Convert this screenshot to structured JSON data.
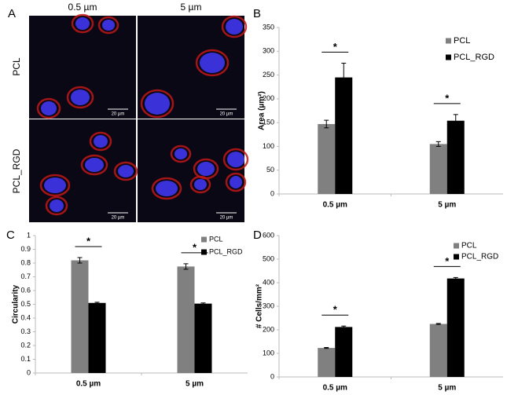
{
  "panel_a": {
    "label": "A",
    "columns": [
      "0.5 µm",
      "5 µm"
    ],
    "rows": [
      "PCL",
      "PCL_RGD"
    ],
    "scale_bars": [
      "20 µm",
      "20 µm",
      "20 µm",
      "20 µm"
    ]
  },
  "chart_data": [
    {
      "type": "bar",
      "label": "B",
      "ylabel": "Area (µm²)",
      "categories": [
        "0.5 µm",
        "5 µm"
      ],
      "series": [
        {
          "name": "PCL",
          "color": "#808080",
          "values": [
            147,
            105
          ],
          "errors": [
            8,
            5
          ]
        },
        {
          "name": "PCL_RGD",
          "color": "#000000",
          "values": [
            245,
            154
          ],
          "errors": [
            30,
            13
          ]
        }
      ],
      "significance": [
        "*",
        "*"
      ],
      "ylim": [
        0,
        350
      ],
      "yticks": [
        0,
        50,
        100,
        150,
        200,
        250,
        300,
        350
      ]
    },
    {
      "type": "bar",
      "label": "C",
      "ylabel": "Circularity",
      "categories": [
        "0.5 µm",
        "5 µm"
      ],
      "series": [
        {
          "name": "PCL",
          "color": "#808080",
          "values": [
            0.82,
            0.775
          ],
          "errors": [
            0.02,
            0.02
          ]
        },
        {
          "name": "PCL_RGD",
          "color": "#000000",
          "values": [
            0.51,
            0.505
          ],
          "errors": [
            0.005,
            0.005
          ]
        }
      ],
      "significance": [
        "*",
        "*"
      ],
      "ylim": [
        0,
        1
      ],
      "yticks": [
        0,
        0.1,
        0.2,
        0.3,
        0.4,
        0.5,
        0.6,
        0.7,
        0.8,
        0.9,
        1
      ]
    },
    {
      "type": "bar",
      "label": "D",
      "ylabel": "# Cells/mm²",
      "categories": [
        "0.5 µm",
        "5 µm"
      ],
      "series": [
        {
          "name": "PCL",
          "color": "#808080",
          "values": [
            123,
            225
          ],
          "errors": [
            2,
            2
          ]
        },
        {
          "name": "PCL_RGD",
          "color": "#000000",
          "values": [
            212,
            418
          ],
          "errors": [
            4,
            4
          ]
        }
      ],
      "significance": [
        "*",
        "*"
      ],
      "ylim": [
        0,
        600
      ],
      "yticks": [
        0,
        100,
        200,
        300,
        400,
        500,
        600
      ]
    }
  ]
}
